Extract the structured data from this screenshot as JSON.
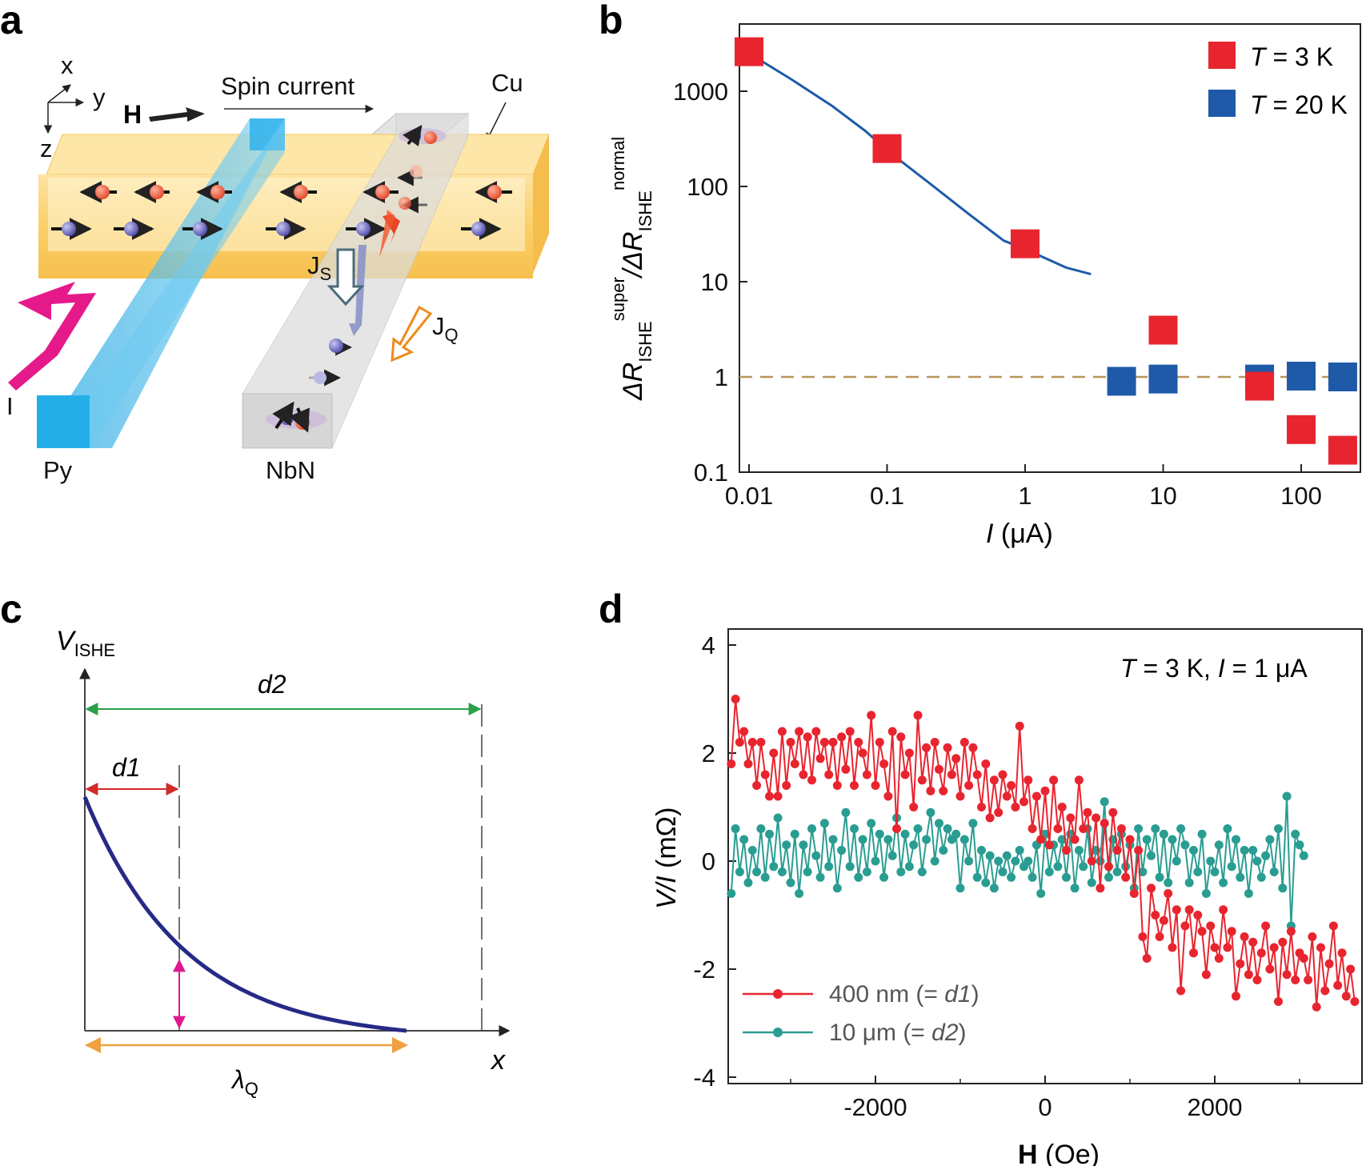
{
  "panels": {
    "a": {
      "letter": "a",
      "axes": {
        "x": "x",
        "y": "y",
        "z": "z"
      },
      "labels": {
        "field": "H",
        "spin_current": "Spin current",
        "cu": "Cu",
        "current": "I",
        "js_main": "J",
        "js_sub": "S",
        "jq_main": "J",
        "jq_sub": "Q",
        "py": "Py",
        "nbn": "NbN"
      },
      "colors": {
        "slab": "#fbd068",
        "py": "#3fb8e8",
        "nbn": "#d8d8d8",
        "arrow_pink": "#e6198a",
        "jq_arrow": "#f08a1c"
      }
    },
    "b": {
      "letter": "b",
      "ylabel_delta": "ΔR",
      "ylabel_sub1": "ISHE",
      "ylabel_sup1": "super",
      "ylabel_sep": "/ΔR",
      "ylabel_sub2": "ISHE",
      "ylabel_sup2": "normal",
      "xlabel_var": "I",
      "xlabel_unit": " (μA)",
      "legend": [
        {
          "prefix": "T",
          "text": " = 3 K",
          "color": "#e8252f"
        },
        {
          "prefix": "T",
          "text": " = 20 K",
          "color": "#1f5aa8"
        }
      ]
    },
    "c": {
      "letter": "c",
      "y_axis_label_main": "V",
      "y_axis_label_sub": "ISHE",
      "x_axis_label": "x",
      "d1_label": "d1",
      "d2_label": "d2",
      "lambda_main": "λ",
      "lambda_sub": "Q",
      "colors": {
        "curve": "#262a86",
        "d1": "#d12a2a",
        "d2": "#2aa04b",
        "lambda": "#f0a040",
        "height": "#e01890"
      }
    },
    "d": {
      "letter": "d",
      "annotation_T": "T",
      "annotation_mid": " = 3 K, ",
      "annotation_I": "I",
      "annotation_end": " = 1 μA",
      "ylabel_var": "V/I",
      "ylabel_unit": " (mΩ)",
      "xlabel_var": "H",
      "xlabel_unit": " (Oe)",
      "legend": [
        {
          "text": "400 nm (= ",
          "ital": "d1",
          "close": ")",
          "color": "#e8252f"
        },
        {
          "text": "10 μm (= ",
          "ital": "d2",
          "close": ")",
          "color": "#2a9d92"
        }
      ]
    }
  },
  "chart_data": [
    {
      "id": "panel-b",
      "type": "scatter",
      "xscale": "log",
      "yscale": "log",
      "xlim": [
        0.01,
        250
      ],
      "ylim": [
        0.1,
        5000
      ],
      "xticks": [
        0.01,
        0.1,
        1,
        10,
        100
      ],
      "xtick_labels": [
        "0.01",
        "0.1",
        "1",
        "10",
        "100"
      ],
      "yticks": [
        0.1,
        1,
        10,
        100,
        1000
      ],
      "ytick_labels": [
        "0.1",
        "1",
        "10",
        "100",
        "1000"
      ],
      "series": [
        {
          "name": "T = 3 K",
          "color": "#e8252f",
          "x": [
            0.01,
            0.1,
            1,
            10,
            50,
            100,
            200
          ],
          "y": [
            2600,
            250,
            25,
            3.1,
            0.8,
            0.28,
            0.17
          ]
        },
        {
          "name": "T = 20 K",
          "color": "#1f5aa8",
          "x": [
            5,
            10,
            50,
            100,
            200
          ],
          "y": [
            0.9,
            0.95,
            0.95,
            1.02,
            1.0
          ]
        }
      ],
      "fit_curve": {
        "color": "#1f5aa8",
        "x": [
          0.01,
          0.02,
          0.04,
          0.07,
          0.1,
          0.2,
          0.4,
          0.7,
          1,
          2,
          3
        ],
        "y": [
          2500,
          1350,
          700,
          380,
          240,
          110,
          50,
          27,
          22,
          14,
          12
        ]
      },
      "reference_line": {
        "y": 1,
        "style": "dashed",
        "color": "#b8965a"
      }
    },
    {
      "id": "panel-d",
      "type": "line",
      "xlim": [
        -3700,
        3700
      ],
      "ylim": [
        -4,
        4
      ],
      "xticks": [
        -2000,
        0,
        2000
      ],
      "xtick_labels": [
        "-2000",
        "0",
        "2000"
      ],
      "yticks": [
        -4,
        -2,
        0,
        2,
        4
      ],
      "ytick_labels": [
        "-4",
        "-2",
        "0",
        "2",
        "4"
      ],
      "series": [
        {
          "name": "400 nm (= d1)",
          "color": "#e8252f",
          "x_start": -3700,
          "x_step": 50,
          "values": [
            1.8,
            3.0,
            2.2,
            2.4,
            1.8,
            2.2,
            1.4,
            2.2,
            1.6,
            1.2,
            2.0,
            1.2,
            2.4,
            1.4,
            2.2,
            1.8,
            2.4,
            1.6,
            2.3,
            1.5,
            2.4,
            1.9,
            2.2,
            1.6,
            2.2,
            1.4,
            2.3,
            1.7,
            2.4,
            1.4,
            2.2,
            2.0,
            1.6,
            2.7,
            1.4,
            2.2,
            1.8,
            1.2,
            2.4,
            0.6,
            2.3,
            1.6,
            2.0,
            1.0,
            2.7,
            1.5,
            2.1,
            1.3,
            2.2,
            1.7,
            1.3,
            2.1,
            1.6,
            1.9,
            1.2,
            2.2,
            1.4,
            2.1,
            1.6,
            1.0,
            1.8,
            0.8,
            1.5,
            0.9,
            1.6,
            1.2,
            1.4,
            1.0,
            2.5,
            1.1,
            1.5,
            0.6,
            1.2,
            0.4,
            1.3,
            0.3,
            1.5,
            0.6,
            1.0,
            0.2,
            0.8,
            0.4,
            1.5,
            0.6,
            0.9,
            0.0,
            0.8,
            -0.5,
            0.7,
            -0.1,
            0.9,
            0.2,
            0.6,
            -0.3,
            0.4,
            -0.6,
            0.2,
            -1.4,
            -1.8,
            -0.5,
            -1.0,
            -1.4,
            -1.1,
            -0.6,
            -1.6,
            -0.9,
            -2.4,
            -1.2,
            -0.9,
            -1.7,
            -1.0,
            -1.3,
            -2.1,
            -1.2,
            -1.6,
            -1.8,
            -0.9,
            -1.6,
            -1.3,
            -2.5,
            -1.9,
            -1.4,
            -2.1,
            -1.5,
            -2.2,
            -1.7,
            -1.2,
            -2.0,
            -1.6,
            -2.6,
            -1.5,
            -2.1,
            -1.3,
            -2.2,
            -1.7,
            -1.8,
            -2.2,
            -1.4,
            -2.7,
            -1.6,
            -2.4,
            -1.9,
            -1.2,
            -2.3,
            -1.7,
            -2.5,
            -2.0,
            -2.6,
            -2.1,
            -2.4,
            -1.9,
            -2.6,
            -2.2
          ]
        },
        {
          "name": "10 μm (= d2)",
          "color": "#2a9d92",
          "x_start": -3700,
          "x_step": 50,
          "values": [
            -0.6,
            0.6,
            -0.2,
            0.4,
            -0.4,
            0.2,
            -0.2,
            0.6,
            -0.3,
            0.5,
            -0.1,
            0.8,
            -0.2,
            0.3,
            -0.4,
            0.5,
            -0.6,
            0.3,
            -0.2,
            0.6,
            0.1,
            -0.3,
            0.7,
            -0.1,
            0.4,
            -0.5,
            0.2,
            0.9,
            -0.1,
            0.6,
            -0.3,
            0.4,
            -0.2,
            0.7,
            0.0,
            0.5,
            -0.3,
            0.4,
            0.1,
            0.8,
            -0.2,
            0.5,
            -0.1,
            0.3,
            0.6,
            -0.2,
            0.4,
            0.9,
            0.0,
            0.7,
            0.2,
            0.6,
            0.4,
            0.5,
            -0.5,
            0.4,
            0.0,
            0.7,
            -0.3,
            0.2,
            -0.4,
            0.1,
            -0.5,
            0.0,
            -0.2,
            0.1,
            -0.3,
            0.0,
            0.2,
            -0.1,
            0.0,
            -0.3,
            0.3,
            -0.6,
            0.5,
            -0.2,
            0.3,
            -0.1,
            0.4,
            -0.3,
            0.5,
            -0.5,
            0.2,
            -0.1,
            0.6,
            -0.4,
            0.2,
            0.0,
            1.1,
            -0.3,
            0.4,
            -0.2,
            0.5,
            -0.1,
            0.3,
            -0.5,
            0.6,
            -0.2,
            0.4,
            0.1,
            0.6,
            -0.3,
            0.5,
            -0.4,
            0.4,
            0.0,
            0.6,
            0.3,
            -0.4,
            0.2,
            -0.2,
            0.5,
            -0.6,
            0.0,
            -0.2,
            0.3,
            -0.4,
            0.6,
            -0.1,
            0.4,
            -0.3,
            0.2,
            -0.6,
            0.2,
            0.0,
            -0.3,
            0.1,
            0.4,
            -0.2,
            0.6,
            -0.5,
            1.2,
            -1.2,
            0.5,
            0.3,
            0.1
          ]
        }
      ]
    }
  ]
}
